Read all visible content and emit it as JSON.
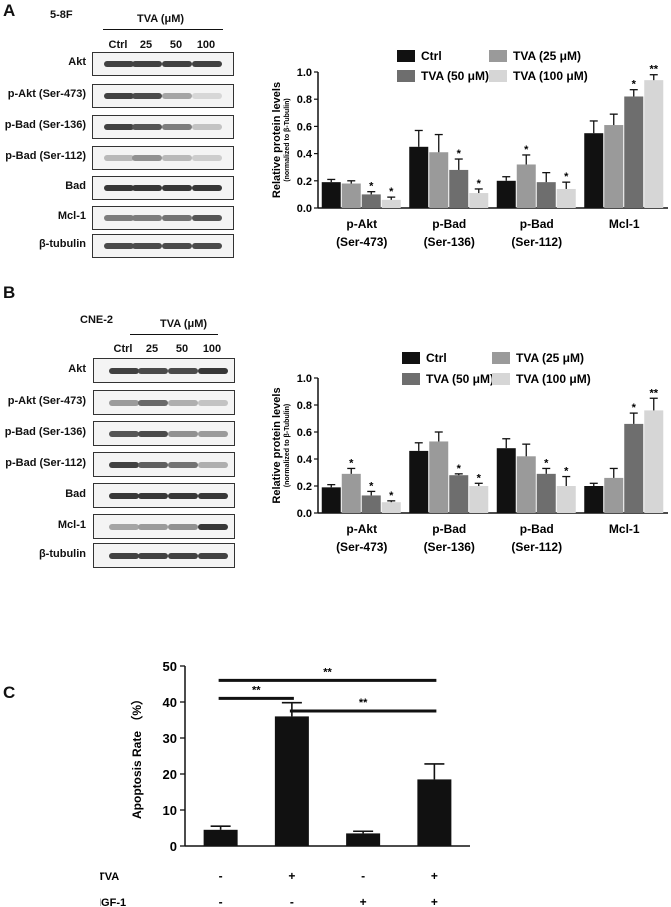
{
  "panels": [
    {
      "letter": "A",
      "cell_line": "5-8F",
      "treatment_label": "TVA (μM)",
      "lanes": [
        "Ctrl",
        "25",
        "50",
        "100"
      ],
      "blots": [
        {
          "label": "Akt",
          "bands": [
            0.85,
            0.85,
            0.85,
            0.85
          ]
        },
        {
          "label": "p-Akt (Ser-473)",
          "bands": [
            0.85,
            0.8,
            0.35,
            0.1
          ]
        },
        {
          "label": "p-Bad (Ser-136)",
          "bands": [
            0.85,
            0.75,
            0.55,
            0.2
          ]
        },
        {
          "label": "p-Bad (Ser-112)",
          "bands": [
            0.25,
            0.45,
            0.25,
            0.15
          ]
        },
        {
          "label": "Bad",
          "bands": [
            0.9,
            0.9,
            0.9,
            0.9
          ]
        },
        {
          "label": "Mcl-1",
          "bands": [
            0.55,
            0.55,
            0.6,
            0.75
          ]
        },
        {
          "label": "β-tubulin",
          "bands": [
            0.8,
            0.8,
            0.8,
            0.8
          ]
        }
      ]
    },
    {
      "letter": "B",
      "cell_line": "CNE-2",
      "treatment_label": "TVA (μM)",
      "lanes": [
        "Ctrl",
        "25",
        "50",
        "100"
      ],
      "blots": [
        {
          "label": "Akt",
          "bands": [
            0.85,
            0.8,
            0.8,
            0.9
          ]
        },
        {
          "label": "p-Akt (Ser-473)",
          "bands": [
            0.4,
            0.65,
            0.3,
            0.2
          ]
        },
        {
          "label": "p-Bad (Ser-136)",
          "bands": [
            0.75,
            0.8,
            0.45,
            0.4
          ]
        },
        {
          "label": "p-Bad (Ser-112)",
          "bands": [
            0.85,
            0.7,
            0.6,
            0.3
          ]
        },
        {
          "label": "Bad",
          "bands": [
            0.9,
            0.9,
            0.9,
            0.9
          ]
        },
        {
          "label": "Mcl-1",
          "bands": [
            0.35,
            0.4,
            0.45,
            0.9
          ]
        },
        {
          "label": "β-tubulin",
          "bands": [
            0.85,
            0.85,
            0.85,
            0.85
          ]
        }
      ]
    },
    {
      "letter": "C"
    }
  ],
  "chart_data": [
    {
      "type": "bar",
      "panel": "A",
      "ylabel": "Relative protein levels",
      "ylabel_sub": "(normalized  to β-Tubulin)",
      "ylim": [
        0,
        1.0
      ],
      "yticks": [
        "0.0",
        "0.2",
        "0.4",
        "0.6",
        "0.8",
        "1.0"
      ],
      "categories": [
        "p-Akt\n(Ser-473)",
        "p-Bad\n(Ser-136)",
        "p-Bad\n(Ser-112)",
        "Mcl-1"
      ],
      "series": [
        {
          "name": "Ctrl",
          "color": "#111111",
          "values": [
            0.19,
            0.45,
            0.2,
            0.55
          ],
          "errors": [
            0.02,
            0.12,
            0.03,
            0.09
          ],
          "sig": [
            "",
            "",
            "",
            ""
          ]
        },
        {
          "name": "TVA (25 μM)",
          "color": "#9a9a9a",
          "values": [
            0.18,
            0.41,
            0.32,
            0.61
          ],
          "errors": [
            0.02,
            0.13,
            0.07,
            0.08
          ],
          "sig": [
            "",
            "",
            "*",
            ""
          ]
        },
        {
          "name": "TVA (50 μM)",
          "color": "#6e6e6e",
          "values": [
            0.1,
            0.28,
            0.19,
            0.82
          ],
          "errors": [
            0.02,
            0.08,
            0.07,
            0.05
          ],
          "sig": [
            "*",
            "*",
            "",
            "*"
          ]
        },
        {
          "name": "TVA (100 μM)",
          "color": "#d6d6d6",
          "values": [
            0.06,
            0.11,
            0.14,
            0.94
          ],
          "errors": [
            0.02,
            0.03,
            0.05,
            0.04
          ],
          "sig": [
            "*",
            "*",
            "*",
            "**"
          ]
        }
      ]
    },
    {
      "type": "bar",
      "panel": "B",
      "ylabel": "Relative protein levels",
      "ylabel_sub": "(normalized  to β-Tubulin)",
      "ylim": [
        0,
        1.0
      ],
      "yticks": [
        "0.0",
        "0.2",
        "0.4",
        "0.6",
        "0.8",
        "1.0"
      ],
      "categories": [
        "p-Akt\n(Ser-473)",
        "p-Bad\n(Ser-136)",
        "p-Bad\n(Ser-112)",
        "Mcl-1"
      ],
      "series": [
        {
          "name": "Ctrl",
          "color": "#111111",
          "values": [
            0.19,
            0.46,
            0.48,
            0.2
          ],
          "errors": [
            0.02,
            0.06,
            0.07,
            0.02
          ],
          "sig": [
            "",
            "",
            "",
            ""
          ]
        },
        {
          "name": "TVA (25 μM)",
          "color": "#9a9a9a",
          "values": [
            0.29,
            0.53,
            0.42,
            0.26
          ],
          "errors": [
            0.04,
            0.07,
            0.09,
            0.07
          ],
          "sig": [
            "*",
            "",
            "",
            ""
          ]
        },
        {
          "name": "TVA (50 μM)",
          "color": "#6e6e6e",
          "values": [
            0.13,
            0.28,
            0.29,
            0.66
          ],
          "errors": [
            0.03,
            0.01,
            0.04,
            0.08
          ],
          "sig": [
            "*",
            "*",
            "*",
            "*"
          ]
        },
        {
          "name": "TVA (100 μM)",
          "color": "#d6d6d6",
          "values": [
            0.08,
            0.2,
            0.2,
            0.76
          ],
          "errors": [
            0.01,
            0.02,
            0.07,
            0.09
          ],
          "sig": [
            "*",
            "*",
            "*",
            "**"
          ]
        }
      ]
    },
    {
      "type": "bar",
      "panel": "C",
      "ylabel": "Apoptosis  Rate （%）",
      "ylim": [
        0,
        50
      ],
      "yticks": [
        "0",
        "10",
        "20",
        "30",
        "40",
        "50"
      ],
      "values": [
        4.5,
        36,
        3.5,
        18.5
      ],
      "errors": [
        1.0,
        3.8,
        0.6,
        4.3
      ],
      "color": "#111111",
      "conditions": [
        {
          "label": "TVA",
          "values": [
            "-",
            "+",
            "-",
            "+"
          ]
        },
        {
          "label": "IGF-1",
          "values": [
            "-",
            "-",
            "+",
            "+"
          ]
        }
      ],
      "brackets": [
        {
          "from": 0,
          "to": 1,
          "label": "**"
        },
        {
          "from": 1,
          "to": 3,
          "label": "**"
        },
        {
          "from": 0,
          "to": 3,
          "label": "**"
        }
      ]
    }
  ]
}
